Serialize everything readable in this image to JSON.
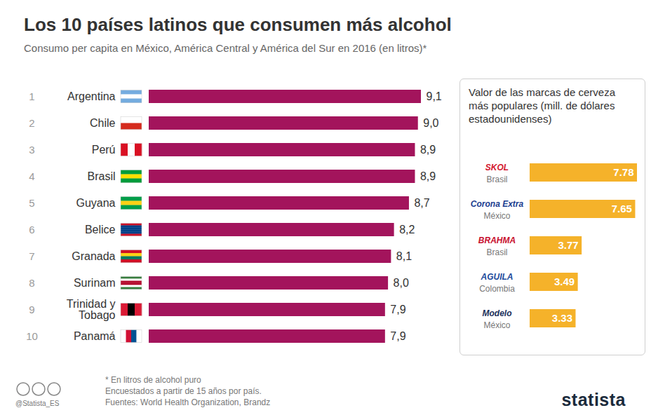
{
  "chart_data": [
    {
      "type": "bar",
      "orientation": "horizontal",
      "title": "Los 10 países latinos que consumen más alcohol",
      "subtitle": "Consumo per capita en México, América Central y América del Sur en 2016 (en litros)*",
      "ranks": [
        1,
        2,
        3,
        4,
        5,
        6,
        7,
        8,
        9,
        10
      ],
      "categories": [
        "Argentina",
        "Chile",
        "Perú",
        "Brasil",
        "Guyana",
        "Belice",
        "Granada",
        "Surinam",
        "Trinidad y Tobago",
        "Panamá"
      ],
      "values": [
        9.1,
        9.0,
        8.9,
        8.9,
        8.7,
        8.2,
        8.1,
        8.0,
        7.9,
        7.9
      ],
      "value_labels": [
        "9,1",
        "9,0",
        "8,9",
        "8,9",
        "8,7",
        "8,2",
        "8,1",
        "8,0",
        "7,9",
        "7,9"
      ],
      "color": "#a3145c",
      "xlim": [
        0,
        9.1
      ],
      "data_labels": true,
      "tick_labels": "y",
      "notes": [
        "* En litros de alcohol puro",
        "Encuestados a partir de 15 años por país.",
        "Fuentes: World Health Organization, Brandz"
      ],
      "credit": "@Statista_ES",
      "brand": "statista"
    },
    {
      "type": "bar",
      "orientation": "horizontal",
      "title": "Valor de las marcas de cerveza más populares (mill. de dólares estadounidenses)",
      "categories": [
        "SKOL",
        "Corona Extra",
        "BRAHMA",
        "AGUILA",
        "Modelo"
      ],
      "countries": [
        "Brasil",
        "México",
        "Brasil",
        "Colombia",
        "México"
      ],
      "values": [
        7.78,
        7.65,
        3.77,
        3.49,
        3.33
      ],
      "color": "#f5b22a",
      "xlim": [
        0,
        7.78
      ],
      "data_labels": true,
      "tick_labels": false
    }
  ]
}
